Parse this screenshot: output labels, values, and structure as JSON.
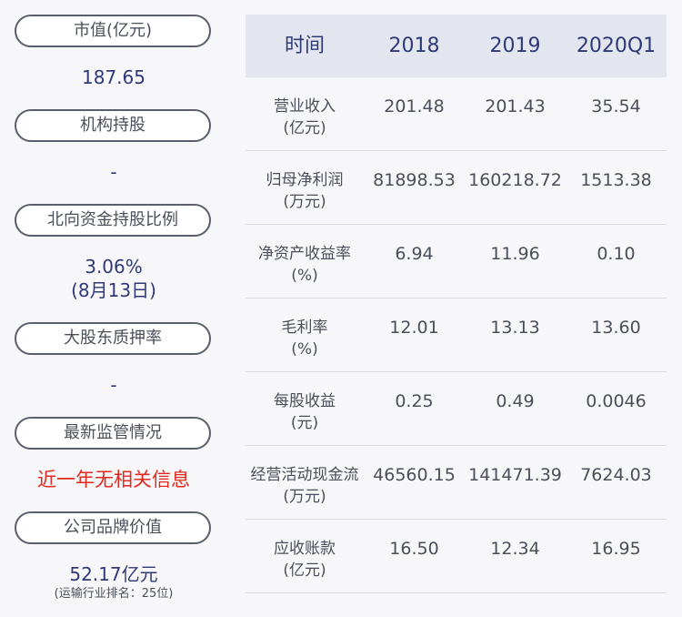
{
  "summary": {
    "items": [
      {
        "label": "市值(亿元)",
        "value": "187.65"
      },
      {
        "label": "机构持股",
        "value": "-"
      },
      {
        "label": "北向资金持股比例",
        "value": "3.06%",
        "value2": "(8月13日)"
      },
      {
        "label": "大股东质押率",
        "value": "-"
      },
      {
        "label": "最新监管情况",
        "value": "近一年无相关信息"
      },
      {
        "label": "公司品牌价值",
        "value": "52.17亿元",
        "note": "(运输行业排名：25位)"
      }
    ]
  },
  "table": {
    "headers": [
      "时间",
      "2018",
      "2019",
      "2020Q1"
    ],
    "rows": [
      {
        "label1": "营业收入",
        "label2": "(亿元)",
        "values": [
          "201.48",
          "201.43",
          "35.54"
        ]
      },
      {
        "label1": "归母净利润",
        "label2": "(万元)",
        "values": [
          "81898.53",
          "160218.72",
          "1513.38"
        ]
      },
      {
        "label1": "净资产收益率",
        "label2": "(%)",
        "values": [
          "6.94",
          "11.96",
          "0.10"
        ]
      },
      {
        "label1": "毛利率",
        "label2": "(%)",
        "values": [
          "12.01",
          "13.13",
          "13.60"
        ]
      },
      {
        "label1": "每股收益",
        "label2": "(元)",
        "values": [
          "0.25",
          "0.49",
          "0.0046"
        ]
      },
      {
        "label1": "经营活动现金流",
        "label2": "(万元)",
        "values": [
          "46560.15",
          "141471.39",
          "7624.03"
        ]
      },
      {
        "label1": "应收账款",
        "label2": "(亿元)",
        "values": [
          "16.50",
          "12.34",
          "16.95"
        ]
      }
    ]
  },
  "colors": {
    "accent": "#2e3a78",
    "alert": "#e0281e",
    "header_bg": "#e4e6ef",
    "background": "#f7f7fa"
  }
}
